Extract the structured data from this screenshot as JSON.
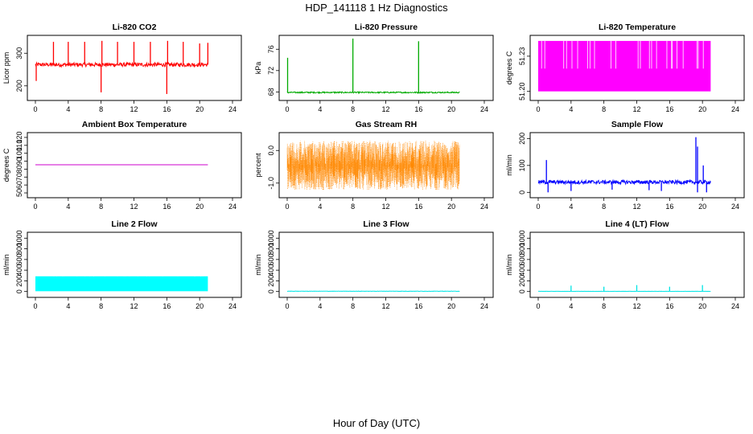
{
  "figure": {
    "title": "HDP_141118  1 Hz Diagnostics",
    "xlabel": "Hour of Day (UTC)"
  },
  "chart_data": [
    {
      "type": "line",
      "title": "Li-820 CO2",
      "ylabel": "Licor ppm",
      "color": "#ff0000",
      "xlim": [
        0,
        24
      ],
      "xticks": [
        "0",
        "4",
        "8",
        "12",
        "16",
        "20",
        "24"
      ],
      "ylim": [
        165,
        345
      ],
      "yticks": [
        "200",
        "300"
      ],
      "x_range": [
        0,
        21
      ],
      "baseline": 265,
      "noise": 6,
      "spikes_up": [
        [
          2.2,
          335
        ],
        [
          4,
          335
        ],
        [
          6,
          335
        ],
        [
          8.1,
          338
        ],
        [
          10,
          335
        ],
        [
          12,
          335
        ],
        [
          14,
          335
        ],
        [
          16.1,
          338
        ],
        [
          18,
          335
        ],
        [
          20,
          330
        ],
        [
          21,
          332
        ]
      ],
      "spikes_down": [
        [
          0.1,
          215
        ],
        [
          8,
          180
        ],
        [
          16,
          175
        ]
      ]
    },
    {
      "type": "line",
      "title": "Li-820 Pressure",
      "ylabel": "kPa",
      "color": "#00aa00",
      "xlim": [
        0,
        24
      ],
      "xticks": [
        "0",
        "4",
        "8",
        "12",
        "16",
        "20",
        "24"
      ],
      "ylim": [
        67,
        78
      ],
      "yticks": [
        "68",
        "72",
        "76"
      ],
      "x_range": [
        0,
        21
      ],
      "baseline": 67.9,
      "noise": 0.12,
      "spikes_up": [
        [
          0.05,
          74.4
        ],
        [
          8,
          78
        ],
        [
          16,
          77.5
        ]
      ]
    },
    {
      "type": "band",
      "title": "Li-820 Temperature",
      "ylabel": "degrees C",
      "color": "#ff00ff",
      "xlim": [
        0,
        24
      ],
      "xticks": [
        "0",
        "4",
        "8",
        "12",
        "16",
        "20",
        "24"
      ],
      "ylim": [
        51.195,
        51.245
      ],
      "yticks": [
        "51.20",
        "51.23"
      ],
      "x_range": [
        0,
        21
      ],
      "band": [
        51.2,
        51.243
      ]
    },
    {
      "type": "line",
      "title": "Ambient Box Temperature",
      "ylabel": "degrees C",
      "color": "#cc00cc",
      "xlim": [
        0,
        24
      ],
      "xticks": [
        "0",
        "4",
        "8",
        "12",
        "16",
        "20",
        "24"
      ],
      "ylim": [
        48,
        122
      ],
      "yticks": [
        "50",
        "60",
        "70",
        "80",
        "90",
        "100",
        "110",
        "120"
      ],
      "x_range": [
        0,
        21
      ],
      "baseline": 85.5,
      "noise": 0
    },
    {
      "type": "scatter",
      "title": "Gas Stream RH",
      "ylabel": "percent",
      "color": "#ff8800",
      "xlim": [
        0,
        24
      ],
      "xticks": [
        "0",
        "4",
        "8",
        "12",
        "16",
        "20",
        "24"
      ],
      "ylim": [
        -1.35,
        0.45
      ],
      "yticks": [
        "-1.0",
        "0.0"
      ],
      "x_range": [
        0,
        21
      ],
      "band": [
        -1.2,
        0.3
      ]
    },
    {
      "type": "line",
      "title": "Sample Flow",
      "ylabel": "ml/min",
      "color": "#0000ff",
      "xlim": [
        0,
        24
      ],
      "xticks": [
        "0",
        "4",
        "8",
        "12",
        "16",
        "20",
        "24"
      ],
      "ylim": [
        -8,
        210
      ],
      "yticks": [
        "0",
        "100",
        "200"
      ],
      "x_range": [
        0,
        21
      ],
      "baseline": 38,
      "noise": 7,
      "spikes_up": [
        [
          1,
          120
        ],
        [
          19.2,
          205
        ],
        [
          19.4,
          170
        ],
        [
          20.1,
          100
        ]
      ],
      "spikes_down": [
        [
          1.2,
          0
        ],
        [
          4,
          5
        ],
        [
          9,
          10
        ],
        [
          13.5,
          8
        ],
        [
          15,
          5
        ],
        [
          19.4,
          0
        ],
        [
          20.5,
          0
        ]
      ]
    },
    {
      "type": "band",
      "title": "Line 2 Flow",
      "ylabel": "ml/min",
      "color": "#00ffff",
      "xlim": [
        0,
        24
      ],
      "xticks": [
        "0",
        "4",
        "8",
        "12",
        "16",
        "20",
        "24"
      ],
      "ylim": [
        -50,
        1050
      ],
      "yticks": [
        "0",
        "200",
        "400",
        "600",
        "800",
        "1000"
      ],
      "x_range": [
        0,
        21
      ],
      "band": [
        5,
        285
      ]
    },
    {
      "type": "line",
      "title": "Line 3 Flow",
      "ylabel": "ml/min",
      "color": "#00e5e5",
      "xlim": [
        0,
        24
      ],
      "xticks": [
        "0",
        "4",
        "8",
        "12",
        "16",
        "20",
        "24"
      ],
      "ylim": [
        -50,
        1050
      ],
      "yticks": [
        "0",
        "200",
        "400",
        "600",
        "800",
        "1000"
      ],
      "x_range": [
        0,
        21
      ],
      "baseline": 5,
      "noise": 3
    },
    {
      "type": "line",
      "title": "Line 4 (LT) Flow",
      "ylabel": "ml/min",
      "color": "#00e5e5",
      "xlim": [
        0,
        24
      ],
      "xticks": [
        "0",
        "4",
        "8",
        "12",
        "16",
        "20",
        "24"
      ],
      "ylim": [
        -50,
        1050
      ],
      "yticks": [
        "0",
        "200",
        "400",
        "600",
        "800",
        "1000"
      ],
      "x_range": [
        0,
        21
      ],
      "baseline": 3,
      "noise": 2,
      "spikes_up": [
        [
          4,
          110
        ],
        [
          8,
          90
        ],
        [
          12,
          120
        ],
        [
          16,
          90
        ],
        [
          20,
          120
        ]
      ]
    }
  ]
}
